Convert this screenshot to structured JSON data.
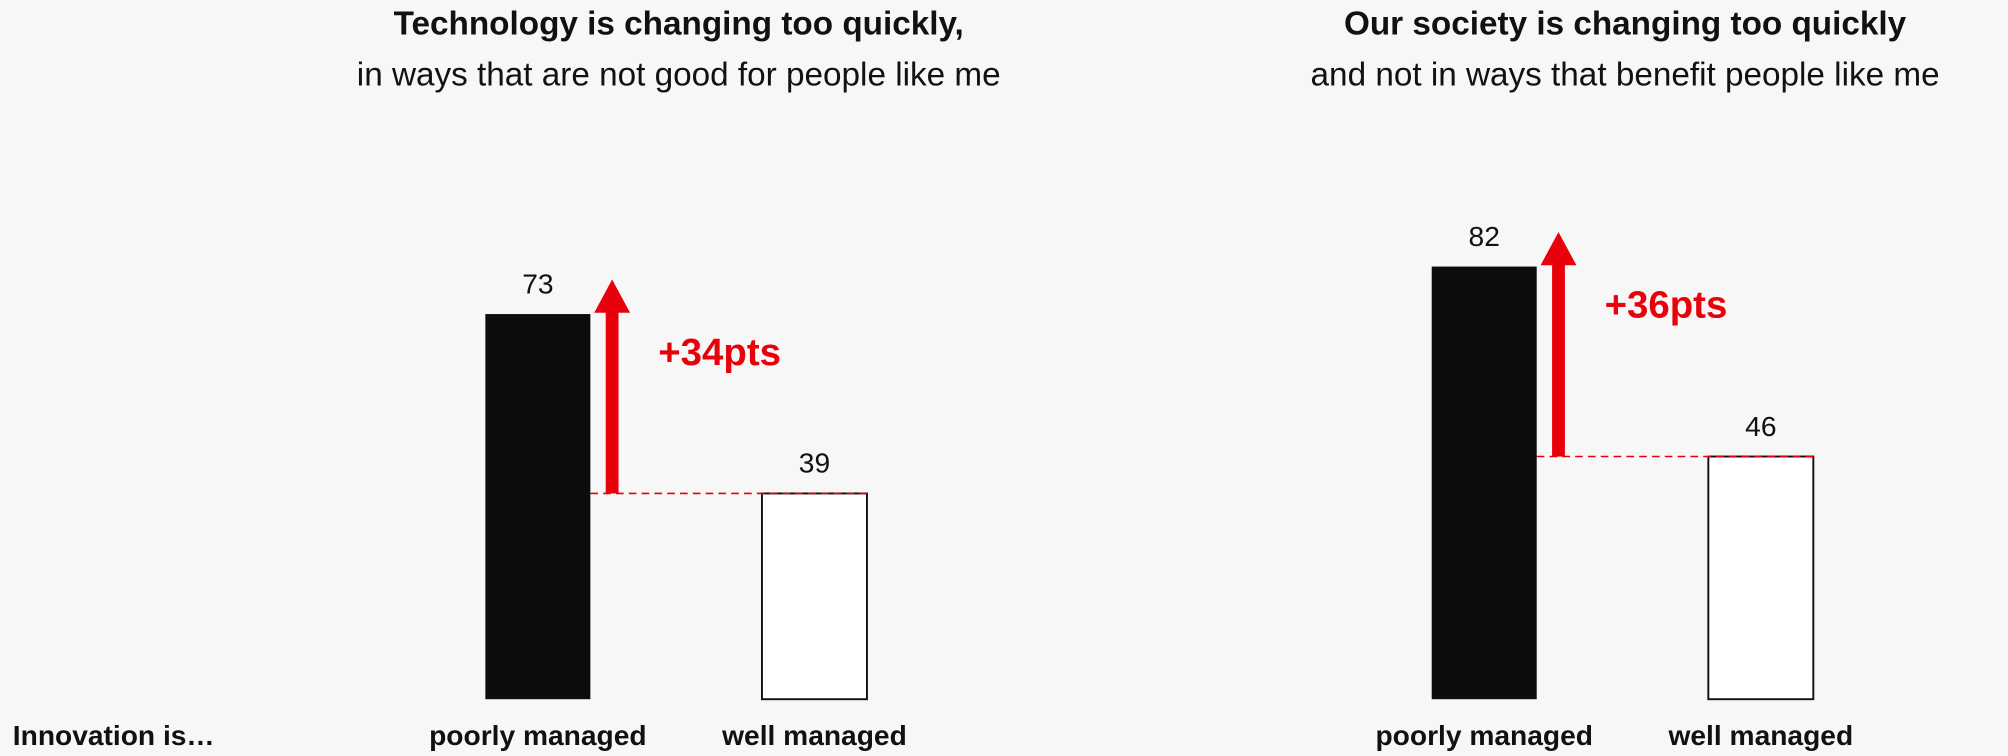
{
  "label": "Innovation is…",
  "chart_data": [
    {
      "type": "bar",
      "title": "Technology is changing too quickly,",
      "subtitle": "in ways that are not good for people like me",
      "categories": [
        "poorly managed",
        "well managed"
      ],
      "values": [
        73,
        39
      ],
      "colors": [
        "#0d0d0d",
        "#ffffff"
      ],
      "annotation": "+34pts",
      "annotation_color": "#e8000b"
    },
    {
      "type": "bar",
      "title": "Our society is changing too quickly",
      "subtitle": "and not in ways that benefit people like me",
      "categories": [
        "poorly managed",
        "well managed"
      ],
      "values": [
        82,
        46
      ],
      "colors": [
        "#0d0d0d",
        "#ffffff"
      ],
      "annotation": "+36pts",
      "annotation_color": "#e8000b"
    }
  ]
}
